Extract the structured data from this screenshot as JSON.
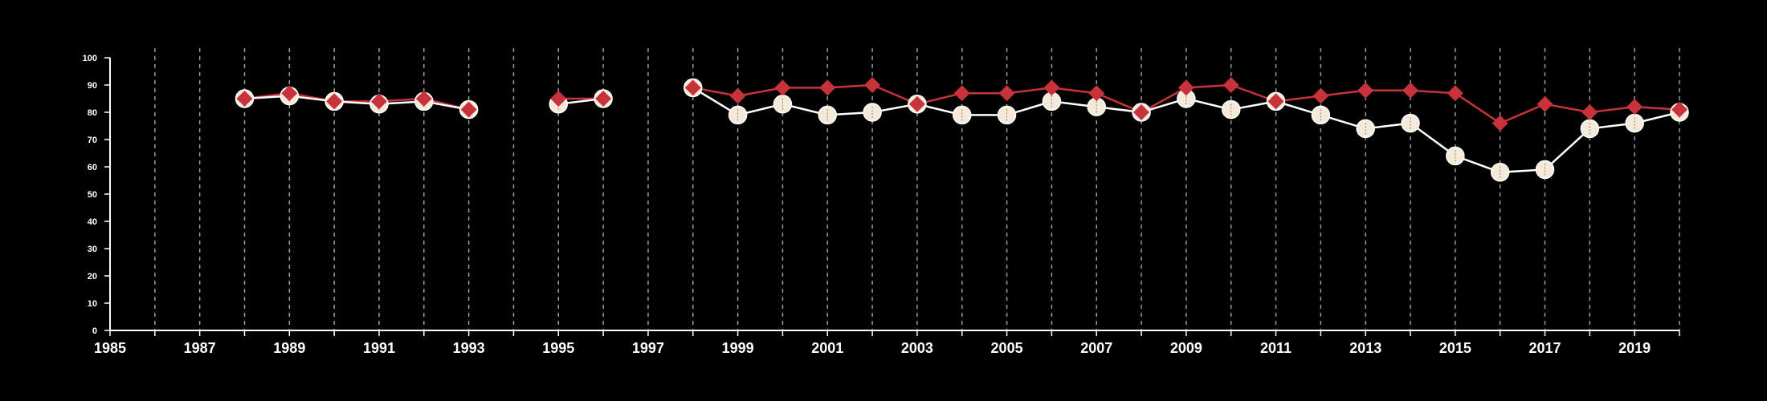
{
  "chart_data": {
    "type": "line",
    "title": "",
    "xlabel": "",
    "ylabel": "",
    "xlim": [
      1985,
      2020
    ],
    "ylim": [
      0,
      100
    ],
    "x_ticks": [
      "1985",
      "1987",
      "1989",
      "1991",
      "1993",
      "1995",
      "1997",
      "1999",
      "2001",
      "2003",
      "2005",
      "2007",
      "2009",
      "2011",
      "2013",
      "2015",
      "2017",
      "2019"
    ],
    "y_ticks": [
      "0",
      "10",
      "20",
      "30",
      "40",
      "50",
      "60",
      "70",
      "80",
      "90",
      "100"
    ],
    "grid": "vertical dashed lines at every year",
    "colors": {
      "background": "#000000",
      "axis": "#ffffff",
      "grid": "#9a9a9a",
      "series_a_line": "#ffffff",
      "series_a_marker": "#f5e9da",
      "series_b": "#c8323a"
    },
    "series": [
      {
        "marker": "circle",
        "x": [
          1988,
          1989,
          1990,
          1991,
          1992,
          1993,
          1995,
          1996,
          1998,
          1999,
          2000,
          2001,
          2002,
          2003,
          2004,
          2005,
          2006,
          2007,
          2008,
          2009,
          2010,
          2011,
          2012,
          2013,
          2014,
          2015,
          2016,
          2017,
          2018,
          2019,
          2020
        ],
        "values": [
          85,
          86,
          84,
          83,
          84,
          81,
          83,
          85,
          89,
          79,
          83,
          79,
          80,
          83,
          79,
          79,
          84,
          82,
          80,
          85,
          81,
          84,
          79,
          74,
          76,
          64,
          58,
          59,
          74,
          76,
          80
        ]
      },
      {
        "marker": "diamond",
        "x": [
          1988,
          1989,
          1990,
          1991,
          1992,
          1993,
          1995,
          1996,
          1998,
          1999,
          2000,
          2001,
          2002,
          2003,
          2004,
          2005,
          2006,
          2007,
          2008,
          2009,
          2010,
          2011,
          2012,
          2013,
          2014,
          2015,
          2016,
          2017,
          2018,
          2019,
          2020
        ],
        "values": [
          85,
          87,
          84,
          84,
          85,
          81,
          85,
          85,
          89,
          86,
          89,
          89,
          90,
          83,
          87,
          87,
          89,
          87,
          80,
          89,
          90,
          84,
          86,
          88,
          88,
          87,
          76,
          83,
          80,
          82,
          81
        ]
      }
    ]
  }
}
